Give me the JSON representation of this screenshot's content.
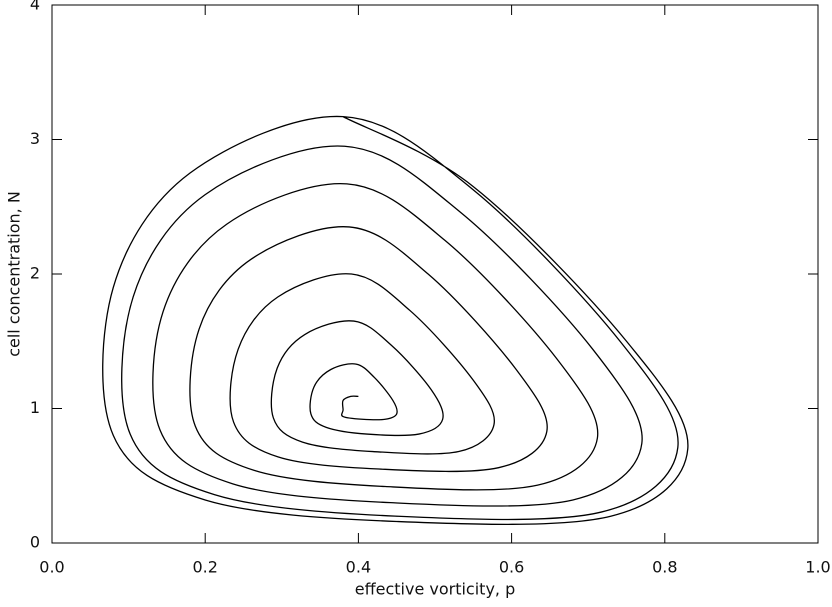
{
  "chart_data": {
    "type": "line",
    "xlabel": "effective vorticity, p",
    "ylabel": "cell concentration, N",
    "xlim": [
      0,
      1
    ],
    "ylim": [
      0,
      4
    ],
    "xticks": [
      {
        "value": 0,
        "label": "0.0"
      },
      0.2,
      0.4,
      0.6,
      0.8,
      {
        "value": 1,
        "label": "1.0"
      }
    ],
    "yticks": [
      0,
      1,
      2,
      3,
      4
    ],
    "grid": false,
    "series": [
      {
        "color": "#000000",
        "x": [
          0.4,
          0.39,
          0.38,
          0.38,
          0.38,
          0.405,
          0.435,
          0.45,
          0.445,
          0.421,
          0.397,
          0.364,
          0.342,
          0.338,
          0.358,
          0.411,
          0.479,
          0.51,
          0.495,
          0.443,
          0.394,
          0.33,
          0.294,
          0.289,
          0.327,
          0.419,
          0.531,
          0.577,
          0.55,
          0.467,
          0.391,
          0.295,
          0.243,
          0.237,
          0.295,
          0.427,
          0.583,
          0.646,
          0.606,
          0.491,
          0.388,
          0.26,
          0.192,
          0.187,
          0.264,
          0.435,
          0.634,
          0.712,
          0.659,
          0.513,
          0.385,
          0.228,
          0.145,
          0.141,
          0.236,
          0.442,
          0.68,
          0.77,
          0.706,
          0.533,
          0.382,
          0.2,
          0.106,
          0.102,
          0.212,
          0.448,
          0.717,
          0.817,
          0.743,
          0.549,
          0.38,
          0.18,
          0.08,
          0.08,
          0.2,
          0.45,
          0.73,
          0.83,
          0.75,
          0.55,
          0.38
        ],
        "values": [
          1.09,
          1.09,
          1.06,
          0.99,
          0.94,
          0.92,
          0.92,
          0.96,
          1.06,
          1.23,
          1.33,
          1.29,
          1.16,
          0.96,
          0.86,
          0.81,
          0.81,
          0.92,
          1.14,
          1.47,
          1.65,
          1.55,
          1.3,
          0.93,
          0.75,
          0.68,
          0.68,
          0.88,
          1.21,
          1.73,
          2.0,
          1.83,
          1.44,
          0.9,
          0.64,
          0.55,
          0.56,
          0.83,
          1.29,
          2.0,
          2.35,
          2.11,
          1.59,
          0.87,
          0.54,
          0.42,
          0.43,
          0.78,
          1.37,
          2.25,
          2.67,
          2.37,
          1.72,
          0.84,
          0.44,
          0.3,
          0.32,
          0.74,
          1.44,
          2.46,
          2.95,
          2.59,
          1.83,
          0.81,
          0.36,
          0.2,
          0.23,
          0.71,
          1.49,
          2.63,
          3.17,
          2.75,
          1.9,
          0.8,
          0.32,
          0.16,
          0.2,
          0.7,
          1.5,
          2.65,
          3.17
        ]
      }
    ]
  }
}
